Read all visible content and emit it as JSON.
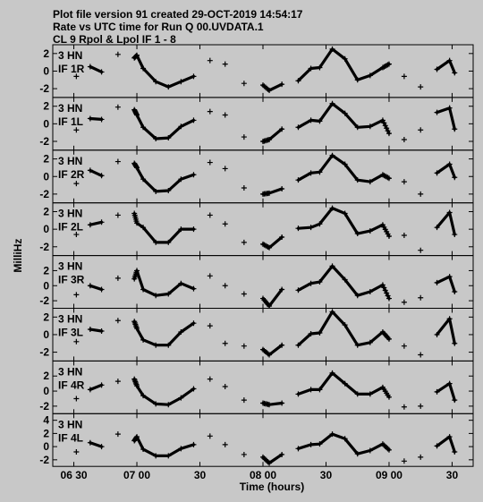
{
  "header": {
    "line1": "Plot file version 91  created 29-OCT-2019 14:54:17",
    "line2": "Rate vs UTC time for Run Q 00.UVDATA.1",
    "line3": "CL 9  Rpol & Lpol  IF 1 - 8"
  },
  "chart_data": {
    "type": "scatter",
    "xlabel": "Time (hours)",
    "ylabel": "MilliHz",
    "x_unit": "hours UTC",
    "xlim": [
      6.333,
      9.667
    ],
    "x_ticks": [
      {
        "value": 6.5,
        "label": "06 30"
      },
      {
        "value": 7.0,
        "label": "07 00"
      },
      {
        "value": 7.5,
        "label": "30"
      },
      {
        "value": 8.0,
        "label": "08 00"
      },
      {
        "value": 8.5,
        "label": "30"
      },
      {
        "value": 9.0,
        "label": "09 00"
      },
      {
        "value": 9.5,
        "label": "30"
      }
    ],
    "panels": [
      {
        "antenna": "3 HN",
        "if_label": "IF 1R",
        "ylim": [
          -3,
          3
        ],
        "yticks": [
          -2,
          0,
          2
        ],
        "x": [
          6.52,
          6.63,
          6.72,
          6.85,
          6.98,
          7.0,
          7.05,
          7.15,
          7.25,
          7.35,
          7.45,
          7.58,
          7.7,
          7.85,
          8.0,
          8.05,
          8.15,
          8.28,
          8.38,
          8.45,
          8.55,
          8.65,
          8.75,
          8.85,
          8.95,
          9.0,
          9.12,
          9.25,
          9.38,
          9.48,
          9.52
        ],
        "y": [
          -0.6,
          0.5,
          -0.1,
          1.9,
          1.5,
          1.8,
          0.3,
          -1.2,
          -1.8,
          -1.2,
          -0.6,
          1.2,
          0.8,
          -1.4,
          -1.6,
          -2.2,
          -1.5,
          -1.1,
          0.3,
          0.4,
          2.5,
          1.4,
          -1.0,
          -0.5,
          0.4,
          0.8,
          -0.6,
          -1.8,
          0.2,
          1.2,
          -0.2
        ]
      },
      {
        "antenna": "3 HN",
        "if_label": "IF 1L",
        "ylim": [
          -3,
          3
        ],
        "yticks": [
          -2,
          0,
          2
        ],
        "x": [
          6.52,
          6.63,
          6.72,
          6.85,
          6.98,
          7.0,
          7.05,
          7.15,
          7.25,
          7.35,
          7.45,
          7.58,
          7.7,
          7.85,
          8.0,
          8.05,
          8.15,
          8.28,
          8.38,
          8.45,
          8.55,
          8.65,
          8.75,
          8.85,
          8.95,
          9.0,
          9.12,
          9.25,
          9.38,
          9.48,
          9.52
        ],
        "y": [
          -0.7,
          0.6,
          0.5,
          1.9,
          1.6,
          1.0,
          -0.4,
          -1.7,
          -1.6,
          -0.3,
          0.4,
          1.4,
          1.0,
          -1.5,
          -2.0,
          -1.8,
          -0.6,
          -0.4,
          0.4,
          0.3,
          2.3,
          1.2,
          -0.4,
          -0.3,
          0.4,
          -1.1,
          -1.8,
          -0.7,
          1.3,
          1.8,
          -0.6
        ]
      },
      {
        "antenna": "3 HN",
        "if_label": "IF 2R",
        "ylim": [
          -3,
          3
        ],
        "yticks": [
          -2,
          0,
          2
        ],
        "x": [
          6.52,
          6.63,
          6.72,
          6.85,
          6.98,
          7.0,
          7.05,
          7.15,
          7.25,
          7.35,
          7.45,
          7.58,
          7.7,
          7.85,
          8.0,
          8.05,
          8.15,
          8.28,
          8.38,
          8.45,
          8.55,
          8.65,
          8.75,
          8.85,
          8.95,
          9.0,
          9.12,
          9.25,
          9.38,
          9.48,
          9.52
        ],
        "y": [
          -0.8,
          0.7,
          0.1,
          1.7,
          1.5,
          1.0,
          -0.3,
          -1.7,
          -1.6,
          -0.3,
          0.2,
          1.6,
          0.9,
          -1.3,
          -2.0,
          -1.9,
          -1.4,
          -0.4,
          0.4,
          0.5,
          2.4,
          1.4,
          -0.4,
          -0.6,
          0.2,
          -0.2,
          -0.6,
          -2.0,
          0.4,
          1.4,
          -0.1
        ]
      },
      {
        "antenna": "3 HN",
        "if_label": "IF 2L",
        "ylim": [
          -3,
          3
        ],
        "yticks": [
          -2,
          0,
          2
        ],
        "x": [
          6.52,
          6.63,
          6.72,
          6.85,
          6.98,
          7.0,
          7.05,
          7.15,
          7.25,
          7.35,
          7.45,
          7.58,
          7.7,
          7.85,
          8.0,
          8.05,
          8.15,
          8.28,
          8.38,
          8.45,
          8.55,
          8.65,
          8.75,
          8.85,
          8.95,
          9.0,
          9.12,
          9.25,
          9.38,
          9.48,
          9.52
        ],
        "y": [
          -0.6,
          0.5,
          0.8,
          1.6,
          1.8,
          0.7,
          0.2,
          -1.5,
          -1.5,
          0.0,
          0.0,
          1.6,
          0.6,
          -1.5,
          -1.7,
          -2.1,
          -0.9,
          0.1,
          0.2,
          0.6,
          2.4,
          1.8,
          -0.5,
          -0.2,
          0.5,
          -0.8,
          -0.7,
          -2.4,
          0.2,
          1.9,
          -0.6
        ]
      },
      {
        "antenna": "3 HN",
        "if_label": "IF 3R",
        "ylim": [
          -3,
          4
        ],
        "yticks": [
          -2,
          0,
          2,
          4
        ],
        "x": [
          6.52,
          6.63,
          6.72,
          6.85,
          6.98,
          7.0,
          7.05,
          7.15,
          7.25,
          7.35,
          7.45,
          7.58,
          7.7,
          7.85,
          8.0,
          8.05,
          8.15,
          8.28,
          8.38,
          8.45,
          8.55,
          8.65,
          8.75,
          8.85,
          8.95,
          9.0,
          9.12,
          9.25,
          9.38,
          9.48,
          9.52
        ],
        "y": [
          -1.2,
          0.0,
          -0.5,
          1.0,
          0.9,
          2.0,
          -0.5,
          -1.3,
          -1.1,
          0.3,
          -0.4,
          1.3,
          0.0,
          -1.1,
          -1.7,
          -2.7,
          -0.5,
          -0.6,
          0.3,
          0.5,
          2.6,
          0.8,
          -1.3,
          -0.8,
          0.1,
          -1.7,
          -2.2,
          -1.6,
          0.4,
          1.2,
          -0.8
        ]
      },
      {
        "antenna": "3 HN",
        "if_label": "IF 3L",
        "ylim": [
          -3,
          3
        ],
        "yticks": [
          -2,
          0,
          2
        ],
        "x": [
          6.52,
          6.63,
          6.72,
          6.85,
          6.98,
          7.0,
          7.05,
          7.15,
          7.25,
          7.35,
          7.45,
          7.58,
          7.7,
          7.85,
          8.0,
          8.05,
          8.15,
          8.28,
          8.38,
          8.45,
          8.55,
          8.65,
          8.75,
          8.85,
          8.95,
          9.0,
          9.12,
          9.25,
          9.38,
          9.48,
          9.52
        ],
        "y": [
          -0.8,
          0.6,
          0.4,
          1.6,
          1.5,
          0.7,
          -0.6,
          -1.2,
          -1.2,
          0.3,
          1.3,
          1.0,
          -1.0,
          -1.3,
          -1.7,
          -2.3,
          -1.2,
          -1.2,
          0.1,
          0.2,
          2.6,
          1.1,
          -1.2,
          -0.9,
          0.3,
          -0.5,
          -1.3,
          -2.3,
          0.0,
          1.8,
          -1.0
        ]
      },
      {
        "antenna": "3 HN",
        "if_label": "IF 4R",
        "ylim": [
          -3,
          4
        ],
        "yticks": [
          -2,
          0,
          2,
          4
        ],
        "x": [
          6.52,
          6.63,
          6.72,
          6.85,
          6.98,
          7.0,
          7.05,
          7.15,
          7.25,
          7.35,
          7.45,
          7.58,
          7.7,
          7.85,
          8.0,
          8.05,
          8.15,
          8.28,
          8.38,
          8.45,
          8.55,
          8.65,
          8.75,
          8.85,
          8.95,
          9.0,
          9.12,
          9.25,
          9.38,
          9.48,
          9.52
        ],
        "y": [
          -1.0,
          0.2,
          0.8,
          1.3,
          1.6,
          0.7,
          -0.6,
          -1.7,
          -1.8,
          -0.9,
          0.3,
          1.6,
          0.6,
          -1.2,
          -1.6,
          -1.8,
          -1.6,
          -0.4,
          0.2,
          0.2,
          2.4,
          1.0,
          -0.4,
          -0.4,
          0.5,
          -0.8,
          -2.1,
          -2.0,
          -0.1,
          1.0,
          -1.2
        ]
      },
      {
        "antenna": "3 HN",
        "if_label": "IF 4L",
        "ylim": [
          -3,
          5
        ],
        "yticks": [
          -2,
          0,
          2,
          4
        ],
        "x": [
          6.52,
          6.63,
          6.72,
          6.85,
          6.98,
          7.0,
          7.05,
          7.15,
          7.25,
          7.35,
          7.45,
          7.58,
          7.7,
          7.85,
          8.0,
          8.05,
          8.15,
          8.28,
          8.38,
          8.45,
          8.55,
          8.65,
          8.75,
          8.85,
          8.95,
          9.0,
          9.12,
          9.25,
          9.38,
          9.48,
          9.52
        ],
        "y": [
          -0.8,
          0.6,
          0.0,
          1.9,
          0.9,
          1.5,
          -0.4,
          -1.4,
          -1.4,
          -0.3,
          0.3,
          1.6,
          0.3,
          -1.2,
          -1.6,
          -2.5,
          -1.2,
          -0.3,
          0.3,
          0.4,
          1.9,
          1.2,
          -1.1,
          -0.6,
          0.4,
          -0.5,
          -2.2,
          -1.6,
          0.1,
          1.5,
          -0.8
        ]
      }
    ]
  }
}
